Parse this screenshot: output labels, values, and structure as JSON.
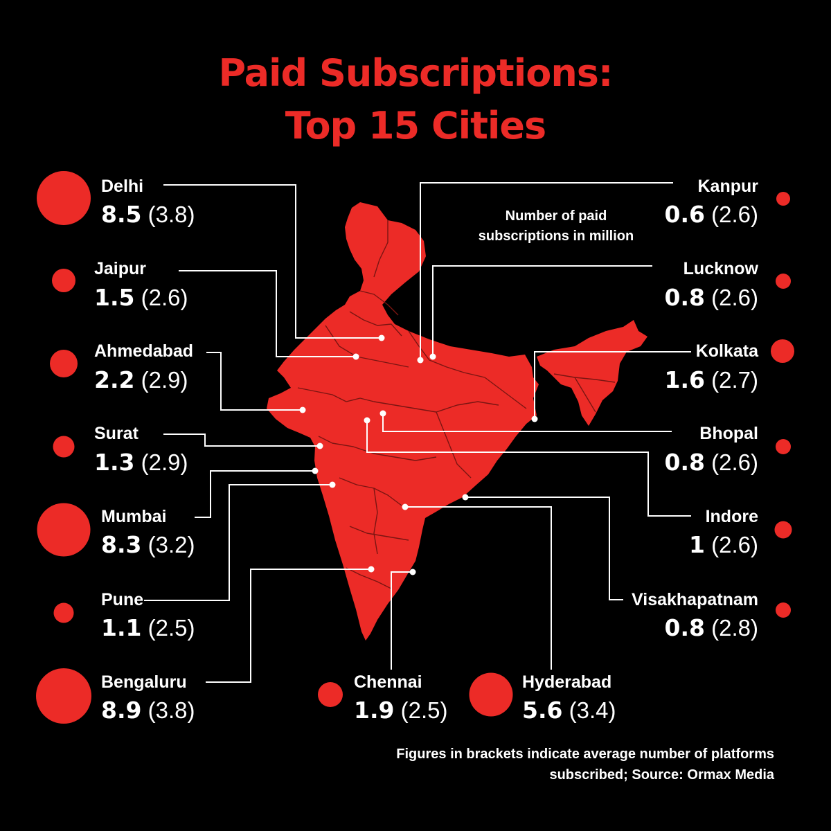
{
  "title": {
    "line1": "Paid Subscriptions:",
    "line2": "Top 15 Cities"
  },
  "legend": "Number of paid subscriptions in million",
  "footnote": {
    "line1": "Figures in brackets indicate average number of platforms",
    "line2": "subscribed; Source: Ormax Media"
  },
  "colors": {
    "accent": "#ec2b27",
    "background": "#000000",
    "text": "#ffffff"
  },
  "cities": [
    {
      "name": "Delhi",
      "paid": "8.5",
      "avg": "(3.8)"
    },
    {
      "name": "Jaipur",
      "paid": "1.5",
      "avg": "(2.6)"
    },
    {
      "name": "Ahmedabad",
      "paid": "2.2",
      "avg": "(2.9)"
    },
    {
      "name": "Surat",
      "paid": "1.3",
      "avg": "(2.9)"
    },
    {
      "name": "Mumbai",
      "paid": "8.3",
      "avg": "(3.2)"
    },
    {
      "name": "Pune",
      "paid": "1.1",
      "avg": "(2.5)"
    },
    {
      "name": "Bengaluru",
      "paid": "8.9",
      "avg": "(3.8)"
    },
    {
      "name": "Chennai",
      "paid": "1.9",
      "avg": "(2.5)"
    },
    {
      "name": "Hyderabad",
      "paid": "5.6",
      "avg": "(3.4)"
    },
    {
      "name": "Kanpur",
      "paid": "0.6",
      "avg": "(2.6)"
    },
    {
      "name": "Lucknow",
      "paid": "0.8",
      "avg": "(2.6)"
    },
    {
      "name": "Kolkata",
      "paid": "1.6",
      "avg": "(2.7)"
    },
    {
      "name": "Bhopal",
      "paid": "0.8",
      "avg": "(2.6)"
    },
    {
      "name": "Indore",
      "paid": "1",
      "avg": "(2.6)"
    },
    {
      "name": "Visakhapatnam",
      "paid": "0.8",
      "avg": "(2.8)"
    }
  ]
}
